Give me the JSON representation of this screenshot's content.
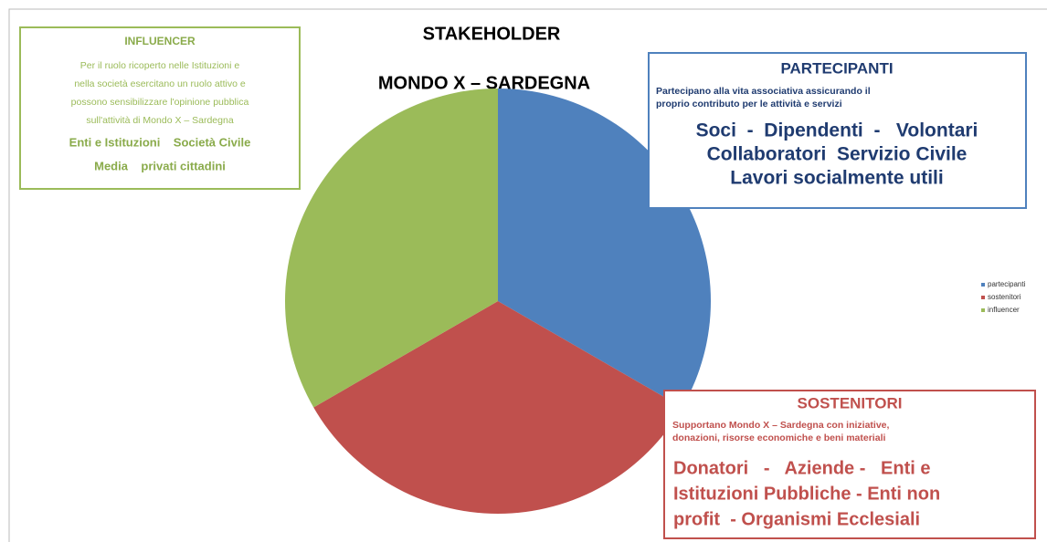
{
  "chart_data": {
    "type": "pie",
    "title": "STAKEHOLDER",
    "subtitle": "MONDO X – SARDEGNA",
    "categories": [
      "partecipanti",
      "sostenitori",
      "influencer"
    ],
    "values": [
      33.3,
      33.3,
      33.3
    ],
    "colors": [
      "#4f81bd",
      "#c0504d",
      "#9bbb59"
    ],
    "legend": "right",
    "annotations": [
      {
        "title": "PARTECIPANTI",
        "text": [
          "Partecipano alla vita associativa assicurando il",
          "proprio contributo per le attività e servizi"
        ],
        "items": [
          "Soci  -  Dipendenti  -   Volontari",
          "Collaboratori  Servizio Civile",
          "Lavori socialmente utili"
        ]
      },
      {
        "title": "SOSTENITORI",
        "text": [
          "Supportano Mondo X – Sardegna con iniziative,",
          "donazioni,  risorse economiche e beni materiali"
        ],
        "items": [
          "Donatori   -   Aziende -   Enti e",
          "Istituzioni Pubbliche - Enti non",
          "profit  - Organismi Ecclesiali"
        ]
      },
      {
        "title": "INFLUENCER",
        "text": [
          "Per il ruolo ricoperto nelle Istituzioni e",
          "nella società esercitano un ruolo attivo e",
          "possono sensibilizzare l'opinione pubblica",
          "sull'attività di Mondo X – Sardegna"
        ],
        "items": [
          "Enti e Istituzioni    Società Civile",
          "Media    privati cittadini"
        ]
      }
    ]
  }
}
